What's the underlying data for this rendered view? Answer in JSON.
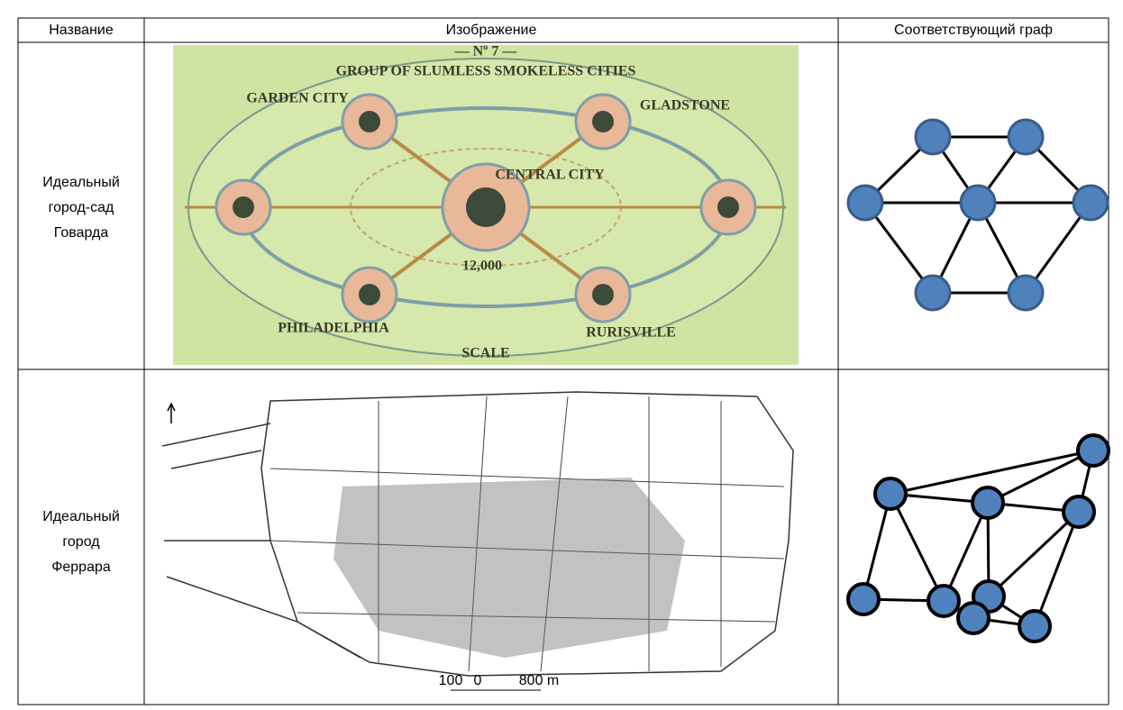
{
  "table": {
    "header": [
      "Название",
      "Изображение",
      "Соответствующий граф"
    ],
    "rows": [
      {
        "name": [
          "Идеальный",
          "город-сад",
          "Говарда"
        ],
        "image_text": {
          "number": "— Nº 7 —",
          "title": "GROUP OF SLUMLESS SMOKELESS CITIES",
          "center": "CENTRAL CITY",
          "population": "12,000",
          "left": "PHILADELPHIA",
          "right": "RURISVILLE",
          "top_left": "GARDEN CITY",
          "top_right": "GLADSTONE",
          "scale": "SCALE"
        }
      },
      {
        "name": [
          "Идеальный",
          "город",
          "Феррара"
        ],
        "image_text": {
          "scale_start": "100",
          "scale_zero": "0",
          "scale_end": "800 m"
        }
      }
    ]
  }
}
